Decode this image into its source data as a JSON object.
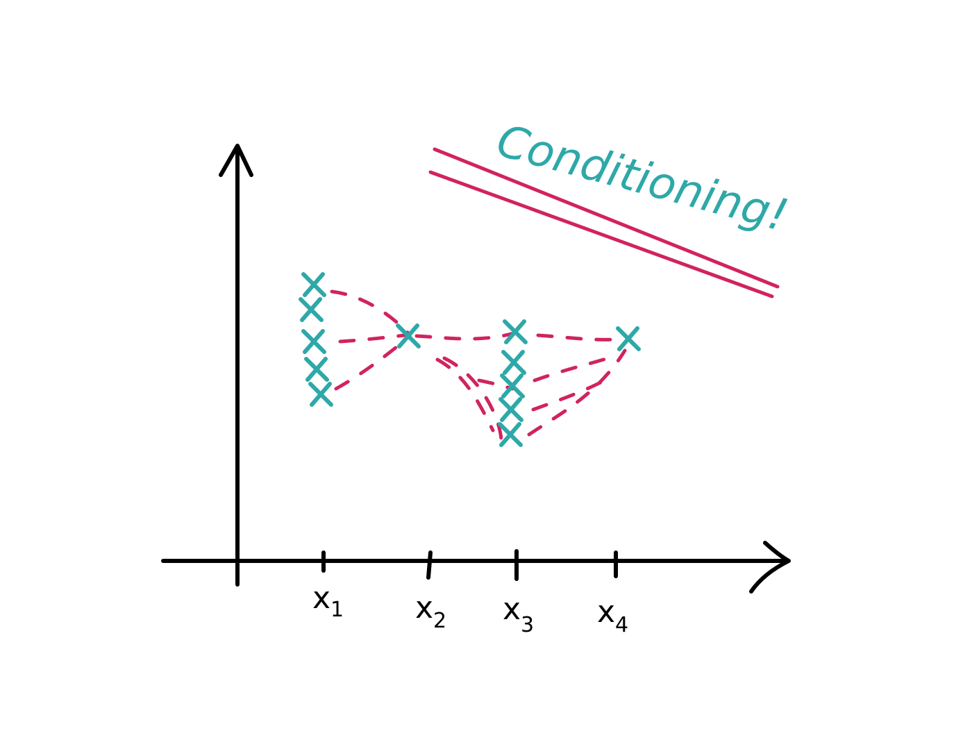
{
  "colors": {
    "axis": "#000000",
    "marks": "#2ea8a8",
    "curves": "#d1235f"
  },
  "diagram": {
    "annotation": "Conditioning!",
    "x_ticks": [
      {
        "base": "x",
        "sub": "1"
      },
      {
        "base": "x",
        "sub": "2"
      },
      {
        "base": "x",
        "sub": "3"
      },
      {
        "base": "x",
        "sub": "4"
      }
    ]
  }
}
